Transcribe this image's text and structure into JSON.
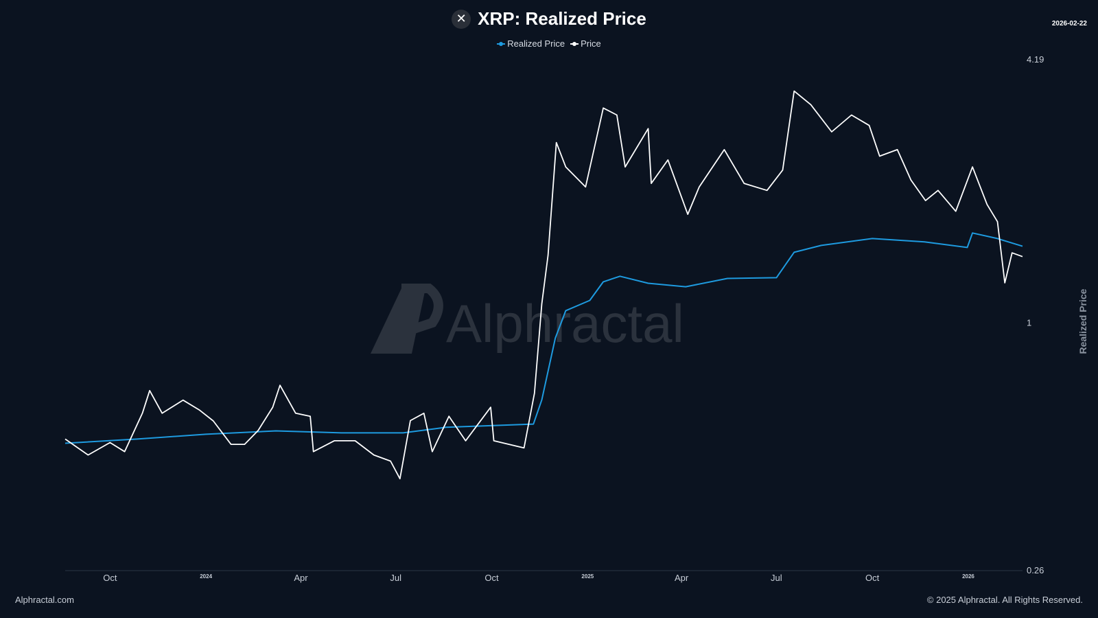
{
  "header": {
    "title": "XRP: Realized Price",
    "logo_icon": "xrp-icon",
    "date": "2026-02-22"
  },
  "footer": {
    "left": "Alphractal.com",
    "right": "© 2025 Alphractal. All Rights Reserved."
  },
  "watermark": "Alphractal",
  "chart_data": {
    "type": "line",
    "title": "XRP: Realized Price",
    "ylabel": "Realized Price",
    "yscale": "log",
    "ylim": [
      0.26,
      4.19
    ],
    "yticks": [
      {
        "v": 4.19,
        "label": "4.19"
      },
      {
        "v": 1,
        "label": "1"
      },
      {
        "v": 0.26,
        "label": "0.26"
      }
    ],
    "xlim": [
      "2023-08-19",
      "2026-02-22"
    ],
    "xticks": [
      {
        "date": "2023-10-01",
        "label": "Oct"
      },
      {
        "date": "2024-01-01",
        "label": "2024",
        "year": true
      },
      {
        "date": "2024-04-01",
        "label": "Apr"
      },
      {
        "date": "2024-07-01",
        "label": "Jul"
      },
      {
        "date": "2024-10-01",
        "label": "Oct"
      },
      {
        "date": "2025-01-01",
        "label": "2025",
        "year": true
      },
      {
        "date": "2025-04-01",
        "label": "Apr"
      },
      {
        "date": "2025-07-01",
        "label": "Jul"
      },
      {
        "date": "2025-10-01",
        "label": "Oct"
      },
      {
        "date": "2026-01-01",
        "label": "2026",
        "year": true
      }
    ],
    "grid": false,
    "legend": "top-center",
    "series": [
      {
        "name": "Realized Price",
        "color": "#1e9be0",
        "points": [
          [
            "2023-08-19",
            0.518
          ],
          [
            "2023-10-27",
            0.53
          ],
          [
            "2024-01-01",
            0.544
          ],
          [
            "2024-03-08",
            0.554
          ],
          [
            "2024-05-10",
            0.548
          ],
          [
            "2024-07-08",
            0.548
          ],
          [
            "2024-08-18",
            0.565
          ],
          [
            "2024-11-10",
            0.575
          ],
          [
            "2024-11-18",
            0.656
          ],
          [
            "2024-12-01",
            0.918
          ],
          [
            "2024-12-11",
            1.066
          ],
          [
            "2025-01-03",
            1.127
          ],
          [
            "2025-01-16",
            1.247
          ],
          [
            "2025-02-01",
            1.285
          ],
          [
            "2025-02-28",
            1.237
          ],
          [
            "2025-04-05",
            1.214
          ],
          [
            "2025-05-15",
            1.27
          ],
          [
            "2025-07-01",
            1.275
          ],
          [
            "2025-07-18",
            1.464
          ],
          [
            "2025-08-13",
            1.52
          ],
          [
            "2025-10-01",
            1.578
          ],
          [
            "2025-11-20",
            1.55
          ],
          [
            "2025-12-31",
            1.503
          ],
          [
            "2026-01-05",
            1.626
          ],
          [
            "2026-01-29",
            1.578
          ],
          [
            "2026-02-22",
            1.513
          ]
        ]
      },
      {
        "name": "Price",
        "color": "#ffffff",
        "points": [
          [
            "2023-08-19",
            0.53
          ],
          [
            "2023-09-10",
            0.486
          ],
          [
            "2023-10-01",
            0.52
          ],
          [
            "2023-10-15",
            0.495
          ],
          [
            "2023-11-01",
            0.61
          ],
          [
            "2023-11-08",
            0.69
          ],
          [
            "2023-11-20",
            0.61
          ],
          [
            "2023-12-10",
            0.655
          ],
          [
            "2023-12-26",
            0.62
          ],
          [
            "2024-01-08",
            0.585
          ],
          [
            "2024-01-25",
            0.515
          ],
          [
            "2024-02-07",
            0.515
          ],
          [
            "2024-02-20",
            0.555
          ],
          [
            "2024-03-05",
            0.63
          ],
          [
            "2024-03-12",
            0.71
          ],
          [
            "2024-03-27",
            0.61
          ],
          [
            "2024-04-10",
            0.6
          ],
          [
            "2024-04-13",
            0.495
          ],
          [
            "2024-05-03",
            0.525
          ],
          [
            "2024-05-23",
            0.525
          ],
          [
            "2024-06-10",
            0.486
          ],
          [
            "2024-06-26",
            0.47
          ],
          [
            "2024-07-05",
            0.427
          ],
          [
            "2024-07-15",
            0.586
          ],
          [
            "2024-07-28",
            0.61
          ],
          [
            "2024-08-05",
            0.495
          ],
          [
            "2024-08-21",
            0.6
          ],
          [
            "2024-09-06",
            0.525
          ],
          [
            "2024-09-30",
            0.63
          ],
          [
            "2024-10-03",
            0.525
          ],
          [
            "2024-11-01",
            0.505
          ],
          [
            "2024-11-11",
            0.68
          ],
          [
            "2024-11-18",
            1.106
          ],
          [
            "2024-11-24",
            1.44
          ],
          [
            "2024-12-02",
            2.66
          ],
          [
            "2024-12-11",
            2.33
          ],
          [
            "2024-12-30",
            2.09
          ],
          [
            "2025-01-16",
            3.21
          ],
          [
            "2025-01-29",
            3.09
          ],
          [
            "2025-02-06",
            2.33
          ],
          [
            "2025-02-28",
            2.87
          ],
          [
            "2025-03-03",
            2.13
          ],
          [
            "2025-03-19",
            2.42
          ],
          [
            "2025-04-07",
            1.8
          ],
          [
            "2025-04-18",
            2.09
          ],
          [
            "2025-05-12",
            2.56
          ],
          [
            "2025-05-31",
            2.13
          ],
          [
            "2025-06-22",
            2.05
          ],
          [
            "2025-07-07",
            2.29
          ],
          [
            "2025-07-18",
            3.52
          ],
          [
            "2025-08-03",
            3.27
          ],
          [
            "2025-08-23",
            2.82
          ],
          [
            "2025-09-11",
            3.09
          ],
          [
            "2025-09-28",
            2.92
          ],
          [
            "2025-10-08",
            2.47
          ],
          [
            "2025-10-25",
            2.56
          ],
          [
            "2025-11-07",
            2.17
          ],
          [
            "2025-11-21",
            1.94
          ],
          [
            "2025-12-03",
            2.05
          ],
          [
            "2025-12-20",
            1.83
          ],
          [
            "2026-01-05",
            2.33
          ],
          [
            "2026-01-19",
            1.9
          ],
          [
            "2026-01-29",
            1.73
          ],
          [
            "2026-02-05",
            1.24
          ],
          [
            "2026-02-12",
            1.46
          ],
          [
            "2026-02-22",
            1.43
          ]
        ]
      }
    ]
  }
}
